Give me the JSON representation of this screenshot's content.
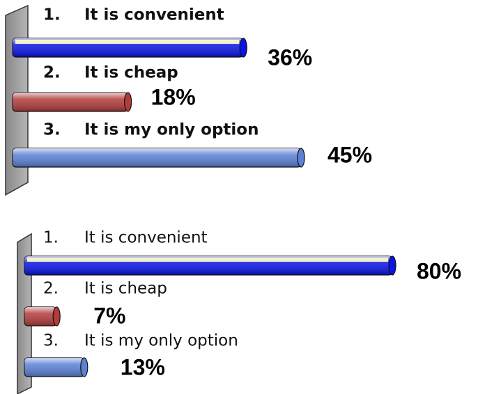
{
  "chart_data": [
    {
      "type": "bar",
      "orientation": "horizontal",
      "category_numbers": [
        "1.",
        "2.",
        "3."
      ],
      "categories": [
        "It is convenient",
        "It is cheap",
        "It is my only option"
      ],
      "values": [
        36,
        18,
        45
      ],
      "value_labels": [
        "36%",
        "18%",
        "45%"
      ],
      "colors": [
        "#0a14e6",
        "#b23b3b",
        "#5b80d6"
      ]
    },
    {
      "type": "bar",
      "orientation": "horizontal",
      "category_numbers": [
        "1.",
        "2.",
        "3."
      ],
      "categories": [
        "It is convenient",
        "It is cheap",
        "It is my only option"
      ],
      "values": [
        80,
        7,
        13
      ],
      "value_labels": [
        "80%",
        "7%",
        "13%"
      ],
      "colors": [
        "#0a14e6",
        "#b23b3b",
        "#5b80d6"
      ]
    }
  ]
}
